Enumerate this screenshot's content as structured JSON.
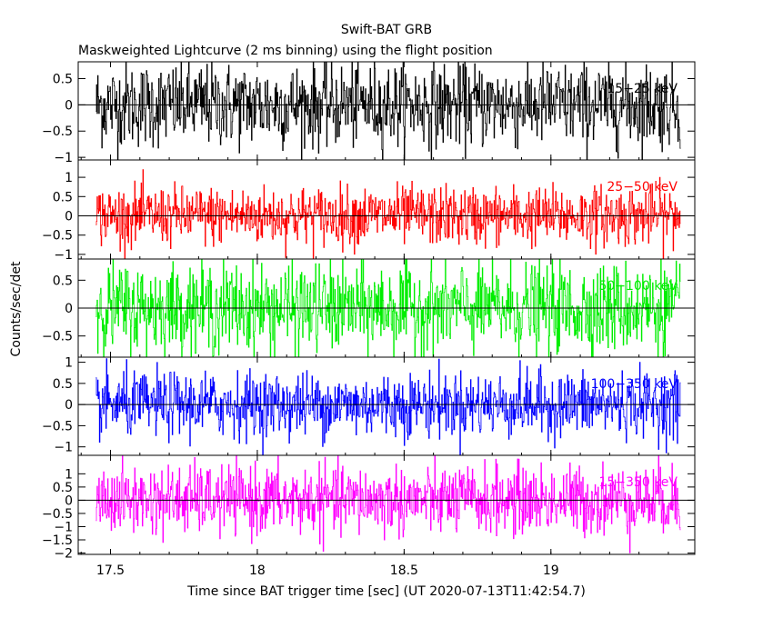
{
  "chart_data": {
    "type": "line",
    "title": "Swift-BAT GRB",
    "subtitle": "Maskweighted Lightcurve (2 ms binning) using the flight position",
    "xlabel": "Time since BAT trigger time [sec] (UT 2020-07-13T11:42:54.7)",
    "ylabel": "Counts/sec/det",
    "xlim": [
      17.39,
      19.49
    ],
    "x_ticks": [
      17.5,
      18,
      18.5,
      19
    ],
    "x_tick_labels": [
      "17.5",
      "18",
      "18.5",
      "19"
    ],
    "data_x_range": [
      17.45,
      19.44
    ],
    "bin_width_s": 0.002,
    "grid": false,
    "panels": [
      {
        "name": "15-25 keV",
        "label": "15−25 keV",
        "color": "#000000",
        "ylim": [
          -1.05,
          0.82
        ],
        "y_ticks": [
          0.5,
          0,
          -0.5,
          -1
        ],
        "y_tick_labels": [
          "0.5",
          "0",
          "−0.5",
          "−1"
        ],
        "amplitude": 0.4,
        "clip": [
          -1.05,
          0.82
        ]
      },
      {
        "name": "25-50 keV",
        "label": "25−50 keV",
        "color": "#ff0000",
        "ylim": [
          -1.12,
          1.45
        ],
        "y_ticks": [
          1,
          0.5,
          0,
          -0.5,
          -1
        ],
        "y_tick_labels": [
          "1",
          "0.5",
          "0",
          "−0.5",
          "−1"
        ],
        "amplitude": 0.38,
        "clip": [
          -1.12,
          1.45
        ]
      },
      {
        "name": "50-100 keV",
        "label": "50−100 keV",
        "color": "#00ee00",
        "ylim": [
          -0.88,
          0.88
        ],
        "y_ticks": [
          0.5,
          0,
          -0.5
        ],
        "y_tick_labels": [
          "0.5",
          "0",
          "−0.5"
        ],
        "amplitude": 0.4,
        "clip": [
          -0.88,
          0.88
        ]
      },
      {
        "name": "100-350 keV",
        "label": "100−350 keV",
        "color": "#0000ff",
        "ylim": [
          -1.2,
          1.12
        ],
        "y_ticks": [
          1,
          0.5,
          0,
          -0.5,
          -1
        ],
        "y_tick_labels": [
          "1",
          "0.5",
          "0",
          "−0.5",
          "−1"
        ],
        "amplitude": 0.38,
        "clip": [
          -1.2,
          1.12
        ]
      },
      {
        "name": "15-350 keV",
        "label": "15−350 keV",
        "color": "#ff00ff",
        "ylim": [
          -2.05,
          1.7
        ],
        "y_ticks": [
          1,
          0.5,
          0,
          -0.5,
          -1,
          -1.5,
          -2
        ],
        "y_tick_labels": [
          "1",
          "0.5",
          "0",
          "−0.5",
          "−1",
          "−1.5",
          "−2"
        ],
        "amplitude": 0.65,
        "clip": [
          -2.05,
          1.7
        ]
      }
    ]
  }
}
